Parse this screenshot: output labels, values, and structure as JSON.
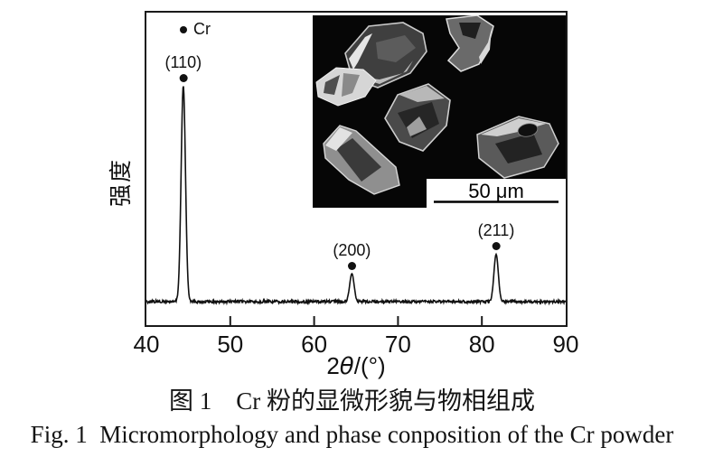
{
  "figure": {
    "caption_cn": "图 1　Cr 粉的显微形貌与物相组成",
    "caption_en": "Fig. 1  Micromorphology and phase conposition of the Cr powder"
  },
  "chart_data": {
    "type": "line",
    "title": "",
    "xlabel_prefix": "2",
    "xlabel_theta": "θ",
    "xlabel_suffix": "/(°)",
    "ylabel": "强度",
    "x_range": [
      40,
      90
    ],
    "x_ticks": [
      40,
      50,
      60,
      70,
      80,
      90
    ],
    "y_ticks": [],
    "grid": false,
    "legend": {
      "label": "Cr",
      "marker": "filled-circle",
      "position": "top-left"
    },
    "line_color": "#111111",
    "series": [
      {
        "name": "Cr powder XRD pattern",
        "baseline_rel_intensity": 0,
        "noise_rel_amplitude": 0.6,
        "peak_sigma_deg": 0.26,
        "peaks": [
          {
            "two_theta": 44.4,
            "hkl": "(110)",
            "rel_intensity": 100
          },
          {
            "two_theta": 64.5,
            "hkl": "(200)",
            "rel_intensity": 13
          },
          {
            "two_theta": 81.7,
            "hkl": "(211)",
            "rel_intensity": 22
          }
        ]
      }
    ]
  },
  "inset": {
    "description": "SEM micrograph of angular Cr powder particles",
    "particle_count": 6,
    "scale_bar_label": "50 μm"
  }
}
